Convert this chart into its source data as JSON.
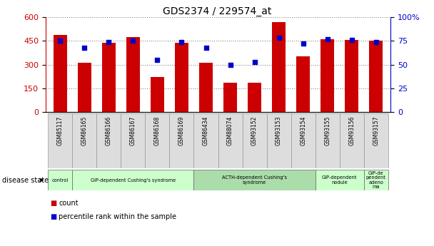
{
  "title": "GDS2374 / 229574_at",
  "samples": [
    "GSM85117",
    "GSM86165",
    "GSM86166",
    "GSM86167",
    "GSM86168",
    "GSM86169",
    "GSM86434",
    "GSM88074",
    "GSM93152",
    "GSM93153",
    "GSM93154",
    "GSM93155",
    "GSM93156",
    "GSM93157"
  ],
  "counts": [
    490,
    310,
    440,
    475,
    220,
    440,
    310,
    185,
    185,
    570,
    350,
    460,
    455,
    450
  ],
  "percentiles": [
    75,
    68,
    74,
    75,
    55,
    74,
    68,
    50,
    53,
    78,
    72,
    77,
    76,
    74
  ],
  "disease_groups": [
    {
      "label": "control",
      "start": 0,
      "end": 1,
      "color": "#ccffcc"
    },
    {
      "label": "GIP-dependent Cushing's syndrome",
      "start": 1,
      "end": 6,
      "color": "#ccffcc"
    },
    {
      "label": "ACTH-dependent Cushing's\nsyndrome",
      "start": 6,
      "end": 11,
      "color": "#aaddaa"
    },
    {
      "label": "GIP-dependent\nnodule",
      "start": 11,
      "end": 13,
      "color": "#ccffcc"
    },
    {
      "label": "GIP-de\npendent\nadeno\nma",
      "start": 13,
      "end": 14,
      "color": "#ccffcc"
    }
  ],
  "ylim_left": [
    0,
    600
  ],
  "ylim_right": [
    0,
    100
  ],
  "yticks_left": [
    0,
    150,
    300,
    450,
    600
  ],
  "yticks_right": [
    0,
    25,
    50,
    75,
    100
  ],
  "bar_color": "#cc0000",
  "dot_color": "#0000cc",
  "bar_width": 0.55,
  "grid_color": "#888888",
  "title_fontsize": 10,
  "tick_fontsize": 7,
  "label_fontsize": 7.5
}
